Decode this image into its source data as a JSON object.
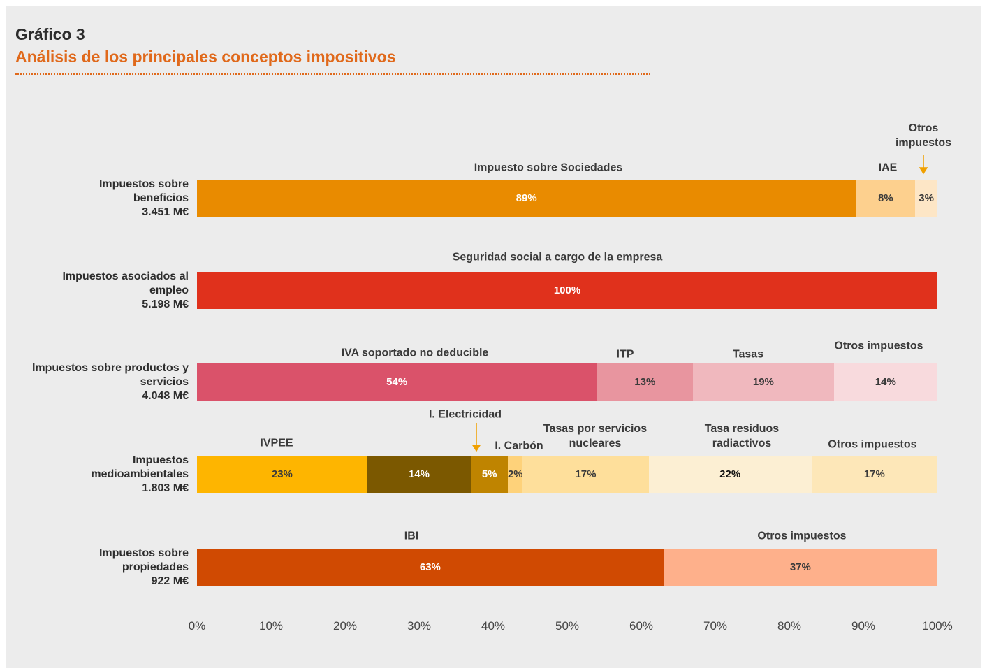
{
  "chart_data": {
    "type": "bar",
    "orientation": "horizontal",
    "stacked": true,
    "title": "Gráfico 3",
    "subtitle": "Análisis de los principales conceptos impositivos",
    "xlim": [
      0,
      100
    ],
    "xticks": [
      {
        "value": 0,
        "label": "0%"
      },
      {
        "value": 10,
        "label": "10%"
      },
      {
        "value": 20,
        "label": "20%"
      },
      {
        "value": 30,
        "label": "30%"
      },
      {
        "value": 40,
        "label": "40%"
      },
      {
        "value": 50,
        "label": "50%"
      },
      {
        "value": 60,
        "label": "60%"
      },
      {
        "value": 70,
        "label": "70%"
      },
      {
        "value": 80,
        "label": "80%"
      },
      {
        "value": 90,
        "label": "90%"
      },
      {
        "value": 100,
        "label": "100%"
      }
    ],
    "grid": false,
    "rows": [
      {
        "label": "Impuestos sobre beneficios",
        "amount": "3.451 M€",
        "segments": [
          {
            "name": "Impuesto sobre Sociedades",
            "value": 89,
            "value_label": "89%",
            "color": "#e98b00"
          },
          {
            "name": "IAE",
            "value": 8,
            "value_label": "8%",
            "color": "#fdd08e"
          },
          {
            "name": "Otros impuestos",
            "value": 3,
            "value_label": "3%",
            "color": "#fde6c6"
          }
        ]
      },
      {
        "label": "Impuestos asociados al empleo",
        "amount": "5.198 M€",
        "segments": [
          {
            "name": "Seguridad social a cargo de la empresa",
            "value": 100,
            "value_label": "100%",
            "color": "#e0311c"
          }
        ]
      },
      {
        "label": "Impuestos sobre productos y servicios",
        "amount": "4.048 M€",
        "segments": [
          {
            "name": "IVA soportado no deducible",
            "value": 54,
            "value_label": "54%",
            "color": "#da526a"
          },
          {
            "name": "ITP",
            "value": 13,
            "value_label": "13%",
            "color": "#e8959f"
          },
          {
            "name": "Tasas",
            "value": 19,
            "value_label": "19%",
            "color": "#f0b8be"
          },
          {
            "name": "Otros impuestos",
            "value": 14,
            "value_label": "14%",
            "color": "#f8dadd"
          }
        ]
      },
      {
        "label": "Impuestos medioambientales",
        "amount": "1.803 M€",
        "segments": [
          {
            "name": "IVPEE",
            "value": 23,
            "value_label": "23%",
            "color": "#feb500"
          },
          {
            "name": "I. Electricidad",
            "value": 14,
            "value_label": "14%",
            "color": "#7b5800"
          },
          {
            "name": "I. Carbón",
            "value": 5,
            "value_label": "5%",
            "color": "#bf8400"
          },
          {
            "name": "Tasas por servicios nucleares",
            "value": 2,
            "value_label": "2%",
            "color": "#fed27a"
          },
          {
            "name": "Tasa residuos radiactivos",
            "value": 17,
            "value_label": "17%",
            "color": "#fedf9b"
          },
          {
            "name": "Otros impuestos",
            "value": 22,
            "value_label": "22%",
            "color": "#fcefd3"
          },
          {
            "name": "",
            "value": 17,
            "value_label": "17%",
            "color": "#fde7b8"
          }
        ]
      },
      {
        "label": "Impuestos sobre propiedades",
        "amount": "922 M€",
        "segments": [
          {
            "name": "IBI",
            "value": 63,
            "value_label": "63%",
            "color": "#d04a02"
          },
          {
            "name": "Otros impuestos",
            "value": 37,
            "value_label": "37%",
            "color": "#feb08b"
          }
        ]
      }
    ]
  }
}
